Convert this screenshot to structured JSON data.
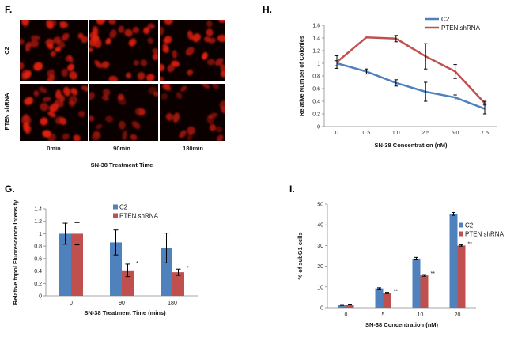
{
  "panels": {
    "F": {
      "label": "F.",
      "row_labels": [
        "C2",
        "PTEN shRNA"
      ],
      "column_labels": [
        "0min",
        "90min",
        "180min"
      ],
      "xlabel": "SN-38 Treatment Time",
      "image_description_colors": {
        "background": "#0a0000",
        "nucleus": "#e02010"
      }
    },
    "H": {
      "label": "H."
    },
    "G": {
      "label": "G."
    },
    "I": {
      "label": "I."
    }
  },
  "colors": {
    "blue": "#4f81bd",
    "red": "#c0504d"
  },
  "chart_data": [
    {
      "id": "H",
      "type": "line",
      "title": "",
      "xlabel": "SN-38 Concentration (nM)",
      "ylabel": "Relative Number of Colonies",
      "categories": [
        "0",
        "0.5",
        "1.0",
        "2.5",
        "5.0",
        "7.5"
      ],
      "ylim": [
        0,
        1.6
      ],
      "yticks": [
        0,
        0.2,
        0.4,
        0.6,
        0.8,
        1,
        1.2,
        1.4,
        1.6
      ],
      "ytick_labels": [
        "0",
        "0.2",
        "0.4",
        "0.6",
        "0.8",
        "1",
        "1.2",
        "1.4",
        "1.6"
      ],
      "legend_position": "top-right",
      "series": [
        {
          "name": "C2",
          "color": "#4f81bd",
          "values": [
            1.0,
            0.87,
            0.69,
            0.55,
            0.46,
            0.28
          ],
          "errors": [
            0.04,
            0.04,
            0.05,
            0.15,
            0.04,
            0.08
          ]
        },
        {
          "name": "PTEN shRNA",
          "color": "#c0504d",
          "values": [
            1.02,
            1.41,
            1.39,
            1.11,
            0.87,
            0.37
          ],
          "errors": [
            0.1,
            0.0,
            0.05,
            0.2,
            0.11,
            0.03
          ]
        }
      ]
    },
    {
      "id": "G",
      "type": "bar",
      "title": "",
      "xlabel": "SN-38 Treatment Time (mins)",
      "ylabel": "Relative  topoI Fluorescence Intensity",
      "categories": [
        "0",
        "90",
        "180"
      ],
      "ylim": [
        0,
        1.4
      ],
      "yticks": [
        0,
        0.2,
        0.4,
        0.6,
        0.8,
        1,
        1.2,
        1.4
      ],
      "ytick_labels": [
        "0",
        "0.2",
        "0.4",
        "0.6",
        "0.8",
        "1",
        "1.2",
        "1.4"
      ],
      "legend_position": "top-right",
      "series": [
        {
          "name": "C2",
          "color": "#4f81bd",
          "values": [
            1.0,
            0.86,
            0.77
          ],
          "errors": [
            0.17,
            0.2,
            0.24
          ]
        },
        {
          "name": "PTEN shRNA",
          "color": "#c0504d",
          "values": [
            1.0,
            0.41,
            0.38
          ],
          "errors": [
            0.18,
            0.1,
            0.05
          ]
        }
      ],
      "annotations": [
        {
          "series": 1,
          "category": 1,
          "text": "*"
        },
        {
          "series": 1,
          "category": 2,
          "text": "*"
        }
      ]
    },
    {
      "id": "I",
      "type": "bar",
      "title": "",
      "xlabel": "SN-38 Concentration (nM)",
      "ylabel": "% of subG1 cells",
      "categories": [
        "0",
        "5",
        "10",
        "20"
      ],
      "ylim": [
        0,
        50
      ],
      "yticks": [
        0,
        10,
        20,
        30,
        40,
        50
      ],
      "ytick_labels": [
        "0",
        "10",
        "20",
        "30",
        "40",
        "50"
      ],
      "legend_position": "right",
      "series": [
        {
          "name": "C2",
          "color": "#4f81bd",
          "values": [
            1.3,
            9.3,
            23.7,
            45.3
          ],
          "errors": [
            0.2,
            0.3,
            0.6,
            0.7
          ]
        },
        {
          "name": "PTEN shRNA",
          "color": "#c0504d",
          "values": [
            1.5,
            7.1,
            15.6,
            30.0
          ],
          "errors": [
            0.2,
            0.3,
            0.4,
            0.3
          ]
        }
      ],
      "annotations": [
        {
          "series": 1,
          "category": 1,
          "text": "**"
        },
        {
          "series": 1,
          "category": 2,
          "text": "**"
        },
        {
          "series": 1,
          "category": 3,
          "text": "**"
        }
      ]
    }
  ]
}
